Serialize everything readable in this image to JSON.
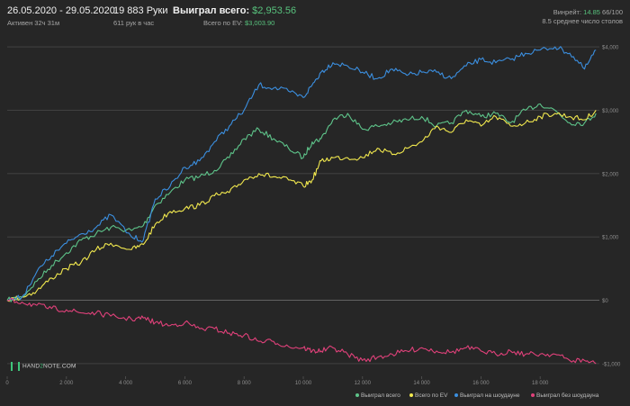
{
  "header": {
    "date_range": "26.05.2020 - 29.05.2020",
    "active": "Активен 32ч 31м",
    "hands": "19 883 Руки",
    "hands_per_hour": "611 рук в час",
    "won_label": "Выиграл всего:",
    "won_value": "$2,953.56",
    "ev_label": "Всего по EV:",
    "ev_value": "$3,003.90",
    "winrate_label": "Винрейт:",
    "winrate_value": "14.85",
    "winrate_extra": "66/100",
    "avg_tables": "8.5 среднее число столов"
  },
  "logo": {
    "left": "HAND",
    "mid": "2",
    "right": "NOTE.COM"
  },
  "colors": {
    "won": "#5ec48a",
    "ev": "#f2e94e",
    "showdown": "#3b8fe0",
    "non_showdown": "#e0417a",
    "positive": "#58c27d"
  },
  "chart_data": {
    "type": "line",
    "xlim": [
      0,
      20000
    ],
    "ylim": [
      -1200,
      4200
    ],
    "x_ticks": [
      0,
      2000,
      4000,
      6000,
      8000,
      10000,
      12000,
      14000,
      16000,
      18000
    ],
    "x_tick_labels": [
      "0",
      "2 000",
      "4 000",
      "6 000",
      "8 000",
      "10 000",
      "12 000",
      "14 000",
      "16 000",
      "18 000"
    ],
    "y_ticks": [
      -1000,
      0,
      1000,
      2000,
      3000,
      4000
    ],
    "y_tick_labels": [
      "-$1,000",
      "$0",
      "$1,000",
      "$2,000",
      "$3,000",
      "$4,000"
    ],
    "legend_position": "bottom-right",
    "series": [
      {
        "name": "Выиграл всего",
        "color": "#5ec48a",
        "x": [
          0,
          500,
          1000,
          1500,
          2000,
          2500,
          3000,
          3500,
          4200,
          4600,
          5000,
          5500,
          6000,
          6500,
          7000,
          7500,
          8000,
          8500,
          9000,
          9500,
          10000,
          10300,
          10600,
          11000,
          11500,
          12000,
          12500,
          13000,
          13500,
          14000,
          14500,
          15000,
          15500,
          16000,
          16500,
          17000,
          17500,
          18000,
          18500,
          19000,
          19500,
          19883
        ],
        "y": [
          0,
          50,
          300,
          550,
          750,
          950,
          1050,
          1150,
          1100,
          1180,
          1500,
          1700,
          1900,
          1950,
          2050,
          2250,
          2550,
          2700,
          2550,
          2400,
          2250,
          2500,
          2550,
          2850,
          2950,
          2700,
          2750,
          2800,
          2850,
          2900,
          2750,
          2800,
          3000,
          2900,
          2950,
          2800,
          3000,
          3100,
          3000,
          2800,
          2800,
          2950
        ]
      },
      {
        "name": "Всего по EV",
        "color": "#f2e94e",
        "x": [
          0,
          500,
          1000,
          1500,
          2000,
          2500,
          3000,
          3500,
          4200,
          4600,
          5000,
          5500,
          6000,
          6500,
          7000,
          7500,
          8000,
          8500,
          9000,
          9500,
          10000,
          10300,
          10600,
          11000,
          11500,
          12000,
          12500,
          13000,
          13500,
          14000,
          14500,
          15000,
          15500,
          16000,
          16500,
          17000,
          17500,
          18000,
          18500,
          19000,
          19500,
          19883
        ],
        "y": [
          0,
          50,
          150,
          350,
          500,
          600,
          800,
          900,
          800,
          880,
          1200,
          1400,
          1450,
          1500,
          1650,
          1700,
          1900,
          2000,
          1950,
          1900,
          1800,
          1900,
          2200,
          2250,
          2250,
          2250,
          2400,
          2300,
          2400,
          2500,
          2750,
          2650,
          2850,
          2750,
          2900,
          2750,
          2800,
          2900,
          2950,
          2900,
          2850,
          3000
        ]
      },
      {
        "name": "Выиграл на шоудауне",
        "color": "#3b8fe0",
        "x": [
          0,
          500,
          1000,
          1500,
          2000,
          2500,
          3000,
          3500,
          4200,
          4600,
          5000,
          5500,
          6000,
          6500,
          7000,
          7500,
          8000,
          8500,
          9000,
          9500,
          10000,
          10300,
          10600,
          11000,
          11500,
          12000,
          12500,
          13000,
          13500,
          14000,
          14500,
          15000,
          15500,
          16000,
          16500,
          17000,
          17500,
          18000,
          18500,
          19000,
          19500,
          19883
        ],
        "y": [
          0,
          50,
          450,
          700,
          900,
          1050,
          1150,
          1350,
          1000,
          950,
          1600,
          1800,
          2100,
          2200,
          2500,
          2750,
          3000,
          3400,
          3350,
          3300,
          3200,
          3400,
          3600,
          3750,
          3700,
          3600,
          3500,
          3650,
          3550,
          3600,
          3600,
          3500,
          3700,
          3800,
          3750,
          3800,
          3900,
          3950,
          4000,
          3900,
          3650,
          3950
        ]
      },
      {
        "name": "Выиграл без шоудауна",
        "color": "#e0417a",
        "x": [
          0,
          500,
          1000,
          1500,
          2000,
          2500,
          3000,
          3500,
          4200,
          4600,
          5000,
          5500,
          6000,
          6500,
          7000,
          7500,
          8000,
          8500,
          9000,
          9500,
          10000,
          10300,
          10600,
          11000,
          11500,
          12000,
          12500,
          13000,
          13500,
          14000,
          14500,
          15000,
          15500,
          16000,
          16500,
          17000,
          17500,
          18000,
          18500,
          19000,
          19500,
          19883
        ],
        "y": [
          0,
          -30,
          -80,
          -130,
          -150,
          -200,
          -200,
          -250,
          -300,
          -280,
          -350,
          -400,
          -350,
          -450,
          -450,
          -520,
          -550,
          -650,
          -650,
          -730,
          -750,
          -800,
          -800,
          -750,
          -850,
          -950,
          -900,
          -850,
          -800,
          -750,
          -800,
          -820,
          -750,
          -800,
          -850,
          -800,
          -850,
          -850,
          -850,
          -950,
          -950,
          -1000
        ]
      }
    ]
  }
}
